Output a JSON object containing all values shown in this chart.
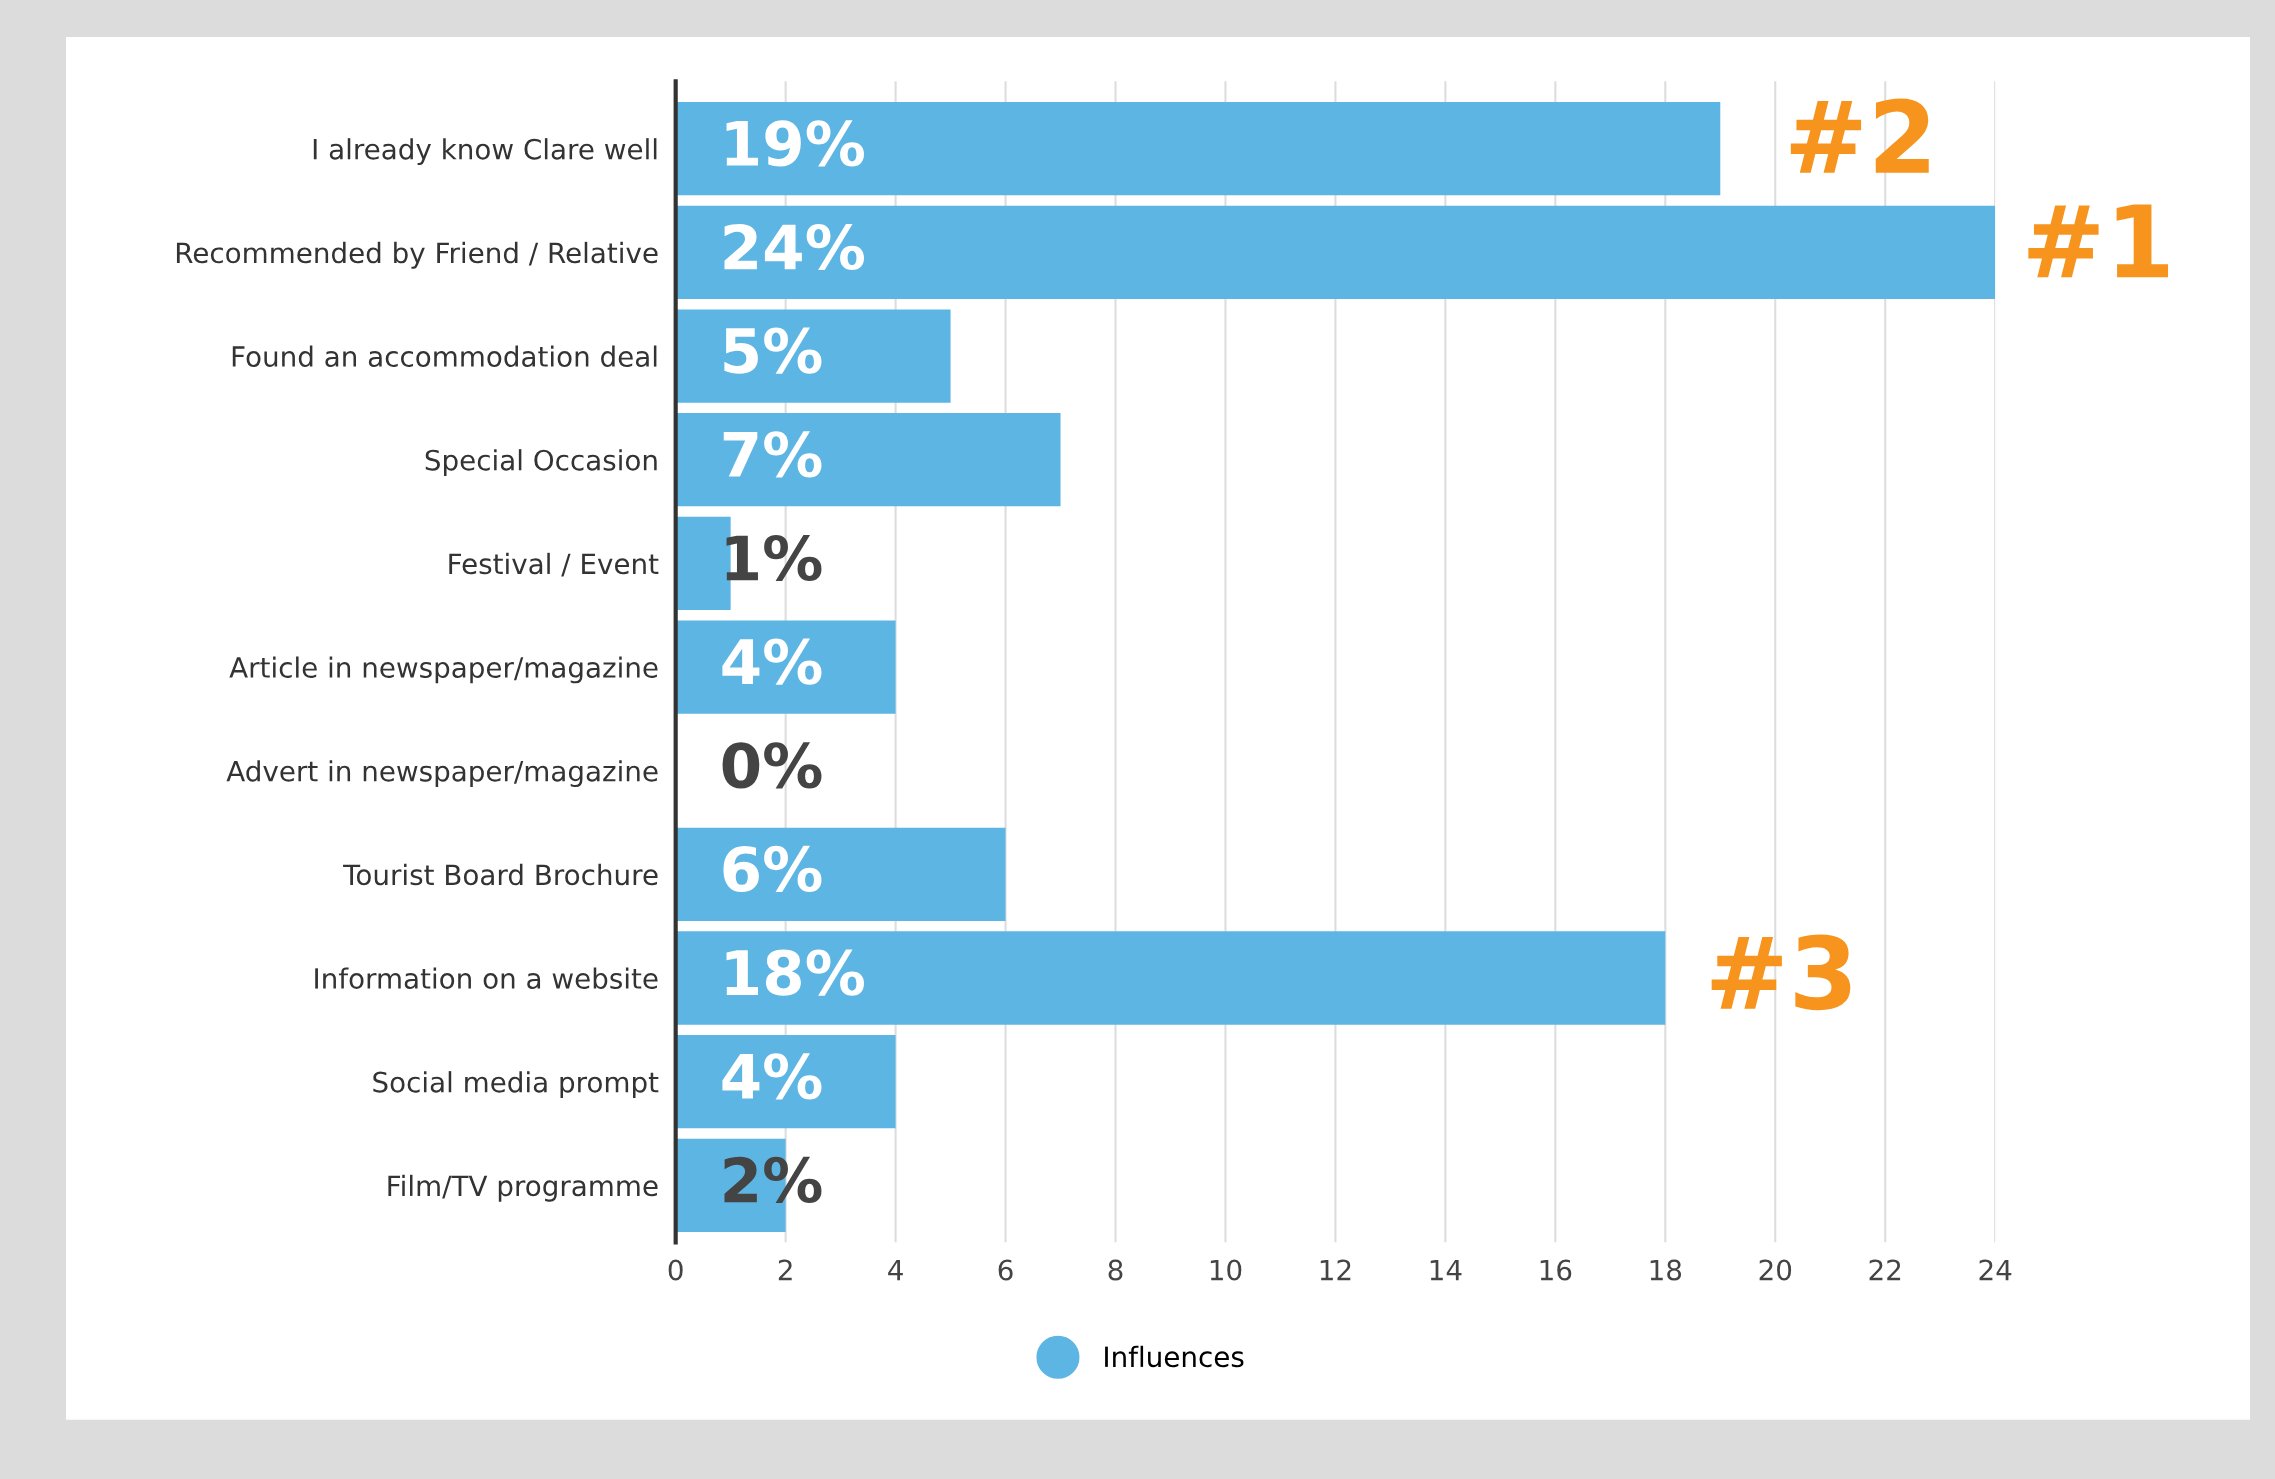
{
  "chart_data": {
    "type": "bar",
    "orientation": "horizontal",
    "categories": [
      "I already know Clare well",
      "Recommended by Friend / Relative",
      "Found an accommodation deal",
      "Special Occasion",
      "Festival / Event",
      "Article in newspaper/magazine",
      "Advert in newspaper/magazine",
      "Tourist Board Brochure",
      "Information on a website",
      "Social media prompt",
      "Film/TV programme"
    ],
    "series": [
      {
        "name": "Influences",
        "color": "#5db5e3",
        "values": [
          19,
          24,
          5,
          7,
          1,
          4,
          0,
          6,
          18,
          4,
          2
        ]
      }
    ],
    "value_labels": [
      "19%",
      "24%",
      "5%",
      "7%",
      "1%",
      "4%",
      "0%",
      "6%",
      "18%",
      "4%",
      "2%"
    ],
    "xlim": [
      0,
      24
    ],
    "xticks": [
      0,
      2,
      4,
      6,
      8,
      10,
      12,
      14,
      16,
      18,
      20,
      22,
      24
    ],
    "grid": "x",
    "legend": "bottom",
    "marker": "circle",
    "annotations": [
      "#2",
      "#1",
      "#3"
    ]
  }
}
